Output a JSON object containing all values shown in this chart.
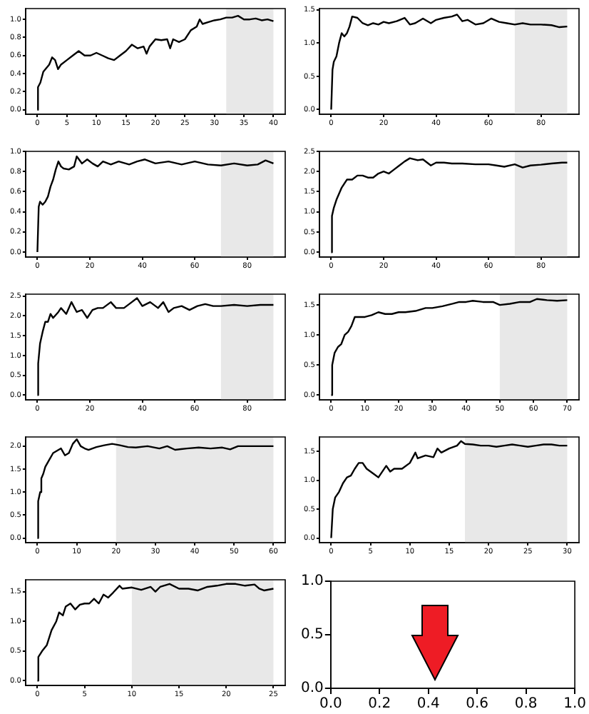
{
  "chart_data": [
    {
      "type": "line",
      "xlim": [
        -2,
        42
      ],
      "ylim": [
        -0.05,
        1.12
      ],
      "xticks": [
        0,
        5,
        10,
        15,
        20,
        25,
        30,
        35,
        40
      ],
      "yticks": [
        {
          "value": 0,
          "label": "0.0"
        },
        {
          "value": 0.2,
          "label": "0.2"
        },
        {
          "value": 0.4,
          "label": "0.4"
        },
        {
          "value": 0.6,
          "label": "0.6"
        },
        {
          "value": 0.8,
          "label": "0.8"
        },
        {
          "value": 1,
          "label": "1.0"
        }
      ],
      "bands": [
        {
          "axis": "x",
          "from": 32,
          "to": 40,
          "color": "#e8e8e8"
        }
      ],
      "series": [
        {
          "color": "#000000",
          "x": [
            0,
            0.1,
            0.5,
            1,
            2,
            2.5,
            3,
            3.5,
            4,
            5,
            6,
            7,
            8,
            9,
            10,
            11,
            12,
            13,
            14,
            15,
            16,
            17,
            18,
            18.5,
            19,
            20,
            21,
            22,
            22.5,
            23,
            24,
            25,
            26,
            27,
            27.5,
            28,
            29,
            30,
            31,
            32,
            33,
            34,
            35,
            36,
            37,
            38,
            39,
            40
          ],
          "values": [
            0,
            0.25,
            0.3,
            0.42,
            0.5,
            0.58,
            0.55,
            0.45,
            0.5,
            0.55,
            0.6,
            0.65,
            0.6,
            0.6,
            0.63,
            0.6,
            0.57,
            0.55,
            0.6,
            0.65,
            0.72,
            0.68,
            0.7,
            0.62,
            0.7,
            0.78,
            0.77,
            0.78,
            0.68,
            0.78,
            0.75,
            0.78,
            0.88,
            0.92,
            1,
            0.95,
            0.97,
            0.99,
            1,
            1.02,
            1.02,
            1.04,
            1,
            1,
            1.01,
            0.99,
            1,
            0.98
          ]
        }
      ]
    },
    {
      "type": "line",
      "xlim": [
        -4.5,
        94.5
      ],
      "ylim": [
        -0.07,
        1.52
      ],
      "xticks": [
        0,
        20,
        40,
        60,
        80
      ],
      "yticks": [
        {
          "value": 0,
          "label": "0.0"
        },
        {
          "value": 0.5,
          "label": "0.5"
        },
        {
          "value": 1,
          "label": "1.0"
        },
        {
          "value": 1.5,
          "label": "1.5"
        }
      ],
      "bands": [
        {
          "axis": "x",
          "from": 70,
          "to": 90,
          "color": "#e8e8e8"
        }
      ],
      "series": [
        {
          "color": "#000000",
          "x": [
            0,
            0.5,
            1,
            2,
            3,
            4,
            5,
            6,
            7,
            8,
            10,
            12,
            14,
            16,
            18,
            20,
            22,
            25,
            28,
            30,
            32,
            35,
            38,
            40,
            43,
            46,
            48,
            50,
            52,
            55,
            58,
            61,
            64,
            67,
            70,
            73,
            76,
            80,
            84,
            87,
            90
          ],
          "values": [
            0,
            0.6,
            0.72,
            0.8,
            1,
            1.15,
            1.1,
            1.15,
            1.25,
            1.4,
            1.38,
            1.3,
            1.27,
            1.3,
            1.28,
            1.32,
            1.3,
            1.33,
            1.38,
            1.28,
            1.3,
            1.37,
            1.3,
            1.35,
            1.38,
            1.4,
            1.43,
            1.33,
            1.35,
            1.28,
            1.3,
            1.37,
            1.32,
            1.3,
            1.28,
            1.3,
            1.28,
            1.28,
            1.27,
            1.24,
            1.25
          ]
        }
      ]
    },
    {
      "type": "line",
      "xlim": [
        -4.5,
        94.5
      ],
      "ylim": [
        -0.05,
        1.0
      ],
      "xticks": [
        0,
        20,
        40,
        60,
        80
      ],
      "yticks": [
        {
          "value": 0,
          "label": "0.0"
        },
        {
          "value": 0.2,
          "label": "0.2"
        },
        {
          "value": 0.4,
          "label": "0.4"
        },
        {
          "value": 0.6,
          "label": "0.6"
        },
        {
          "value": 0.8,
          "label": "0.8"
        },
        {
          "value": 1,
          "label": "1.0"
        }
      ],
      "bands": [
        {
          "axis": "x",
          "from": 70,
          "to": 90,
          "color": "#e8e8e8"
        }
      ],
      "series": [
        {
          "color": "#000000",
          "x": [
            0,
            0.5,
            1,
            2,
            3,
            4,
            5,
            6,
            7,
            8,
            9,
            10,
            12,
            14,
            15,
            17,
            19,
            21,
            23,
            25,
            28,
            31,
            35,
            38,
            41,
            45,
            50,
            55,
            60,
            65,
            70,
            75,
            80,
            84,
            87,
            90
          ],
          "values": [
            0,
            0.45,
            0.5,
            0.47,
            0.5,
            0.55,
            0.65,
            0.72,
            0.82,
            0.9,
            0.85,
            0.83,
            0.82,
            0.85,
            0.95,
            0.88,
            0.92,
            0.88,
            0.85,
            0.9,
            0.87,
            0.9,
            0.87,
            0.9,
            0.92,
            0.88,
            0.9,
            0.87,
            0.9,
            0.87,
            0.86,
            0.88,
            0.86,
            0.87,
            0.91,
            0.88
          ]
        }
      ]
    },
    {
      "type": "line",
      "xlim": [
        -4.5,
        94.5
      ],
      "ylim": [
        -0.12,
        2.5
      ],
      "xticks": [
        0,
        20,
        40,
        60,
        80
      ],
      "yticks": [
        {
          "value": 0,
          "label": "0.0"
        },
        {
          "value": 0.5,
          "label": "0.5"
        },
        {
          "value": 1,
          "label": "1.0"
        },
        {
          "value": 1.5,
          "label": "1.5"
        },
        {
          "value": 2,
          "label": "2.0"
        },
        {
          "value": 2.5,
          "label": "2.5"
        }
      ],
      "bands": [
        {
          "axis": "x",
          "from": 70,
          "to": 90,
          "color": "#e8e8e8"
        }
      ],
      "series": [
        {
          "color": "#000000",
          "x": [
            0,
            0.3,
            1,
            2,
            4,
            6,
            8,
            10,
            12,
            14,
            16,
            18,
            20,
            22,
            24,
            26,
            28,
            30,
            33,
            35,
            38,
            40,
            43,
            46,
            50,
            55,
            60,
            63,
            66,
            70,
            73,
            76,
            80,
            84,
            88,
            90
          ],
          "values": [
            0,
            0.9,
            1.1,
            1.3,
            1.6,
            1.8,
            1.8,
            1.9,
            1.9,
            1.85,
            1.85,
            1.95,
            2,
            1.95,
            2.05,
            2.15,
            2.25,
            2.33,
            2.28,
            2.3,
            2.15,
            2.22,
            2.22,
            2.2,
            2.2,
            2.18,
            2.18,
            2.15,
            2.12,
            2.18,
            2.1,
            2.15,
            2.17,
            2.2,
            2.22,
            2.22
          ]
        }
      ]
    },
    {
      "type": "line",
      "xlim": [
        -4.5,
        94.5
      ],
      "ylim": [
        -0.12,
        2.55
      ],
      "xticks": [
        0,
        20,
        40,
        60,
        80
      ],
      "yticks": [
        {
          "value": 0,
          "label": "0.0"
        },
        {
          "value": 0.5,
          "label": "0.5"
        },
        {
          "value": 1,
          "label": "1.0"
        },
        {
          "value": 1.5,
          "label": "1.5"
        },
        {
          "value": 2,
          "label": "2.0"
        },
        {
          "value": 2.5,
          "label": "2.5"
        }
      ],
      "bands": [
        {
          "axis": "x",
          "from": 70,
          "to": 90,
          "color": "#e8e8e8"
        }
      ],
      "series": [
        {
          "color": "#000000",
          "x": [
            0,
            0.3,
            1,
            2,
            3,
            4,
            5,
            6,
            8,
            9,
            11,
            13,
            15,
            17,
            19,
            21,
            23,
            25,
            28,
            30,
            33,
            35,
            38,
            40,
            43,
            46,
            48,
            50,
            52,
            55,
            58,
            61,
            64,
            67,
            70,
            75,
            80,
            85,
            90
          ],
          "values": [
            0,
            0.8,
            1.3,
            1.6,
            1.85,
            1.85,
            2.05,
            1.95,
            2.1,
            2.2,
            2.05,
            2.35,
            2.1,
            2.15,
            1.95,
            2.15,
            2.2,
            2.2,
            2.35,
            2.2,
            2.2,
            2.3,
            2.45,
            2.25,
            2.35,
            2.2,
            2.35,
            2.1,
            2.2,
            2.25,
            2.15,
            2.25,
            2.3,
            2.25,
            2.25,
            2.28,
            2.25,
            2.28,
            2.28
          ]
        }
      ]
    },
    {
      "type": "line",
      "xlim": [
        -3.5,
        73.5
      ],
      "ylim": [
        -0.08,
        1.68
      ],
      "xticks": [
        0,
        10,
        20,
        30,
        40,
        50,
        60,
        70
      ],
      "yticks": [
        {
          "value": 0,
          "label": "0.0"
        },
        {
          "value": 0.5,
          "label": "0.5"
        },
        {
          "value": 1,
          "label": "1.0"
        },
        {
          "value": 1.5,
          "label": "1.5"
        }
      ],
      "bands": [
        {
          "axis": "x",
          "from": 50,
          "to": 70,
          "color": "#e8e8e8"
        }
      ],
      "series": [
        {
          "color": "#000000",
          "x": [
            0,
            0.3,
            1,
            2,
            3,
            4,
            5,
            6,
            7,
            8,
            10,
            12,
            14,
            16,
            18,
            20,
            22,
            25,
            28,
            30,
            33,
            36,
            38,
            40,
            42,
            45,
            48,
            50,
            53,
            56,
            59,
            61,
            64,
            67,
            70
          ],
          "values": [
            0,
            0.5,
            0.7,
            0.8,
            0.85,
            1,
            1.05,
            1.15,
            1.3,
            1.3,
            1.3,
            1.33,
            1.38,
            1.35,
            1.35,
            1.38,
            1.38,
            1.4,
            1.45,
            1.45,
            1.48,
            1.52,
            1.55,
            1.55,
            1.57,
            1.55,
            1.55,
            1.5,
            1.52,
            1.55,
            1.55,
            1.6,
            1.58,
            1.57,
            1.58
          ]
        }
      ]
    },
    {
      "type": "line",
      "xlim": [
        -3,
        63
      ],
      "ylim": [
        -0.1,
        2.2
      ],
      "xticks": [
        0,
        10,
        20,
        30,
        40,
        50,
        60
      ],
      "yticks": [
        {
          "value": 0,
          "label": "0.0"
        },
        {
          "value": 0.5,
          "label": "0.5"
        },
        {
          "value": 1,
          "label": "1.0"
        },
        {
          "value": 1.5,
          "label": "1.5"
        },
        {
          "value": 2,
          "label": "2.0"
        }
      ],
      "bands": [
        {
          "axis": "x",
          "from": 20,
          "to": 60,
          "color": "#e8e8e8"
        }
      ],
      "series": [
        {
          "color": "#000000",
          "x": [
            0,
            0.2,
            0.7,
            1,
            1.5,
            2,
            3,
            4,
            5,
            6,
            7,
            8,
            9,
            10,
            11,
            12,
            13,
            15,
            17,
            19,
            21,
            23,
            25,
            28,
            31,
            33,
            35,
            38,
            41,
            44,
            47,
            49,
            51,
            54,
            57,
            60
          ],
          "values": [
            0,
            0.8,
            1,
            1.3,
            1.4,
            1.55,
            1.7,
            1.85,
            1.9,
            1.95,
            1.8,
            1.85,
            2.05,
            2.15,
            2,
            1.95,
            1.92,
            1.98,
            2.02,
            2.05,
            2.02,
            1.98,
            1.97,
            2,
            1.95,
            2,
            1.92,
            1.95,
            1.97,
            1.95,
            1.97,
            1.93,
            2,
            2,
            2,
            2
          ]
        }
      ]
    },
    {
      "type": "line",
      "xlim": [
        -1.5,
        31.5
      ],
      "ylim": [
        -0.08,
        1.75
      ],
      "xticks": [
        0,
        5,
        10,
        15,
        20,
        25,
        30
      ],
      "yticks": [
        {
          "value": 0,
          "label": "0.0"
        },
        {
          "value": 0.5,
          "label": "0.5"
        },
        {
          "value": 1,
          "label": "1.0"
        },
        {
          "value": 1.5,
          "label": "1.5"
        }
      ],
      "bands": [
        {
          "axis": "x",
          "from": 17,
          "to": 30,
          "color": "#e8e8e8"
        }
      ],
      "series": [
        {
          "color": "#000000",
          "x": [
            0,
            0.2,
            0.5,
            1,
            1.5,
            2,
            2.5,
            3,
            3.5,
            4,
            4.5,
            5,
            5.5,
            6,
            7,
            7.5,
            8,
            9,
            10,
            10.7,
            11,
            12,
            13,
            13.5,
            14,
            15,
            16,
            16.5,
            17,
            18,
            19,
            20,
            21,
            22,
            23,
            24,
            25,
            26,
            27,
            28,
            29,
            30
          ],
          "values": [
            0,
            0.5,
            0.7,
            0.8,
            0.95,
            1.05,
            1.08,
            1.2,
            1.3,
            1.3,
            1.2,
            1.15,
            1.1,
            1.05,
            1.25,
            1.15,
            1.2,
            1.2,
            1.3,
            1.48,
            1.38,
            1.43,
            1.4,
            1.55,
            1.48,
            1.55,
            1.6,
            1.68,
            1.63,
            1.62,
            1.6,
            1.6,
            1.58,
            1.6,
            1.62,
            1.6,
            1.58,
            1.6,
            1.62,
            1.62,
            1.6,
            1.6
          ]
        }
      ]
    },
    {
      "type": "line",
      "xlim": [
        -1.25,
        26.25
      ],
      "ylim": [
        -0.08,
        1.7
      ],
      "xticks": [
        0,
        5,
        10,
        15,
        20,
        25
      ],
      "yticks": [
        {
          "value": 0,
          "label": "0.0"
        },
        {
          "value": 0.5,
          "label": "0.5"
        },
        {
          "value": 1,
          "label": "1.0"
        },
        {
          "value": 1.5,
          "label": "1.5"
        }
      ],
      "bands": [
        {
          "axis": "x",
          "from": 10,
          "to": 25,
          "color": "#e8e8e8"
        }
      ],
      "series": [
        {
          "color": "#000000",
          "x": [
            0,
            0.1,
            0.5,
            1,
            1.5,
            2,
            2.3,
            2.7,
            3,
            3.5,
            4,
            4.5,
            5,
            5.5,
            6,
            6.5,
            7,
            7.5,
            8,
            8.7,
            9,
            10,
            11,
            12,
            12.5,
            13,
            14,
            15,
            16,
            17,
            18,
            19,
            20,
            21,
            22,
            23,
            23.5,
            24,
            25
          ],
          "values": [
            0,
            0.4,
            0.5,
            0.6,
            0.85,
            1,
            1.15,
            1.1,
            1.25,
            1.3,
            1.2,
            1.28,
            1.3,
            1.3,
            1.38,
            1.3,
            1.45,
            1.4,
            1.48,
            1.6,
            1.55,
            1.57,
            1.53,
            1.58,
            1.5,
            1.58,
            1.63,
            1.55,
            1.55,
            1.52,
            1.58,
            1.6,
            1.63,
            1.63,
            1.6,
            1.62,
            1.55,
            1.52,
            1.55
          ]
        }
      ]
    },
    {
      "type": "scatter",
      "xlim": [
        0,
        1
      ],
      "ylim": [
        0,
        1
      ],
      "xticks": [
        {
          "value": 0,
          "label": "0.0"
        },
        {
          "value": 0.2,
          "label": "0.2"
        },
        {
          "value": 0.4,
          "label": "0.4"
        },
        {
          "value": 0.6,
          "label": "0.6"
        },
        {
          "value": 0.8,
          "label": "0.8"
        },
        {
          "value": 1,
          "label": "1.0"
        }
      ],
      "yticks": [
        {
          "value": 0,
          "label": "0.0"
        },
        {
          "value": 0.5,
          "label": "0.5"
        },
        {
          "value": 1,
          "label": "1.0"
        }
      ]
    }
  ]
}
